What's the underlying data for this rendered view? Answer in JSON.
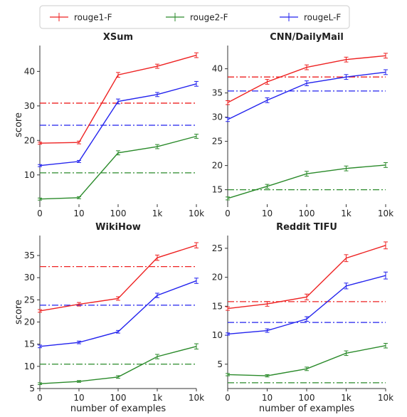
{
  "legend": {
    "placement": "top",
    "entries": [
      {
        "name": "rouge1-F",
        "color": "#ee2222"
      },
      {
        "name": "rouge2-F",
        "color": "#2a8a2a"
      },
      {
        "name": "rougeL-F",
        "color": "#2222ee"
      }
    ]
  },
  "chart_data": [
    {
      "type": "line",
      "title": "XSum",
      "xlabel": "",
      "ylabel": "score",
      "x_categories": [
        "0",
        "10",
        "100",
        "1k",
        "10k"
      ],
      "ylim": [
        1.5,
        47.5
      ],
      "yticks": [
        10,
        20,
        30,
        40
      ],
      "grid": false,
      "series": [
        {
          "name": "rouge1-F",
          "values": [
            19.2,
            19.4,
            39.0,
            41.5,
            44.7
          ],
          "errors": [
            0.3,
            0.4,
            0.7,
            0.6,
            0.7
          ]
        },
        {
          "name": "rouge2-F",
          "values": [
            3.0,
            3.4,
            16.4,
            18.2,
            21.2
          ],
          "errors": [
            0.3,
            0.3,
            0.6,
            0.6,
            0.6
          ]
        },
        {
          "name": "rougeL-F",
          "values": [
            12.7,
            13.9,
            31.3,
            33.3,
            36.4
          ],
          "errors": [
            0.3,
            0.3,
            0.7,
            0.6,
            0.7
          ]
        }
      ],
      "baselines": [
        {
          "name": "rouge1-F",
          "value": 30.8
        },
        {
          "name": "rouge2-F",
          "value": 10.6
        },
        {
          "name": "rougeL-F",
          "value": 24.4
        }
      ]
    },
    {
      "type": "line",
      "title": "CNN/DailyMail",
      "xlabel": "",
      "ylabel": "",
      "x_categories": [
        "0",
        "10",
        "100",
        "1k",
        "10k"
      ],
      "ylim": [
        12.0,
        44.8
      ],
      "yticks": [
        15,
        20,
        25,
        30,
        35,
        40
      ],
      "grid": false,
      "series": [
        {
          "name": "rouge1-F",
          "values": [
            33.0,
            37.3,
            40.3,
            41.9,
            42.7
          ],
          "errors": [
            0.4,
            0.5,
            0.5,
            0.5,
            0.5
          ]
        },
        {
          "name": "rouge2-F",
          "values": [
            13.2,
            15.7,
            18.3,
            19.4,
            20.1
          ],
          "errors": [
            0.3,
            0.4,
            0.5,
            0.5,
            0.5
          ]
        },
        {
          "name": "rougeL-F",
          "values": [
            29.5,
            33.5,
            37.0,
            38.3,
            39.3
          ],
          "errors": [
            0.4,
            0.5,
            0.5,
            0.5,
            0.5
          ]
        }
      ],
      "baselines": [
        {
          "name": "rouge1-F",
          "value": 38.3
        },
        {
          "name": "rouge2-F",
          "value": 15.0
        },
        {
          "name": "rougeL-F",
          "value": 35.4
        }
      ]
    },
    {
      "type": "line",
      "title": "WikiHow",
      "xlabel": "number of examples",
      "ylabel": "score",
      "x_categories": [
        "0",
        "10",
        "100",
        "1k",
        "10k"
      ],
      "ylim": [
        5.0,
        39.5
      ],
      "yticks": [
        5,
        10,
        15,
        20,
        25,
        30,
        35
      ],
      "grid": false,
      "series": [
        {
          "name": "rouge1-F",
          "values": [
            22.5,
            24.0,
            25.3,
            34.5,
            37.3
          ],
          "errors": [
            0.3,
            0.4,
            0.4,
            0.6,
            0.6
          ]
        },
        {
          "name": "rouge2-F",
          "values": [
            6.1,
            6.6,
            7.6,
            12.2,
            14.5
          ],
          "errors": [
            0.2,
            0.2,
            0.3,
            0.5,
            0.6
          ]
        },
        {
          "name": "rougeL-F",
          "values": [
            14.5,
            15.4,
            17.8,
            26.0,
            29.3
          ],
          "errors": [
            0.3,
            0.3,
            0.3,
            0.5,
            0.6
          ]
        }
      ],
      "baselines": [
        {
          "name": "rouge1-F",
          "value": 32.5
        },
        {
          "name": "rouge2-F",
          "value": 10.5
        },
        {
          "name": "rougeL-F",
          "value": 23.8
        }
      ]
    },
    {
      "type": "line",
      "title": "Reddit TIFU",
      "xlabel": "number of examples",
      "ylabel": "",
      "x_categories": [
        "0",
        "10",
        "100",
        "1k",
        "10k"
      ],
      "ylim": [
        0.8,
        27.2
      ],
      "yticks": [
        5,
        10,
        15,
        20,
        25
      ],
      "grid": false,
      "series": [
        {
          "name": "rouge1-F",
          "values": [
            14.6,
            15.4,
            16.6,
            23.3,
            25.5
          ],
          "errors": [
            0.3,
            0.4,
            0.5,
            0.6,
            0.6
          ]
        },
        {
          "name": "rouge2-F",
          "values": [
            3.2,
            3.0,
            4.2,
            6.9,
            8.2
          ],
          "errors": [
            0.2,
            0.2,
            0.3,
            0.4,
            0.4
          ]
        },
        {
          "name": "rougeL-F",
          "values": [
            10.2,
            10.8,
            12.8,
            18.5,
            20.3
          ],
          "errors": [
            0.2,
            0.3,
            0.4,
            0.5,
            0.6
          ]
        }
      ],
      "baselines": [
        {
          "name": "rouge1-F",
          "value": 15.8
        },
        {
          "name": "rouge2-F",
          "value": 1.8
        },
        {
          "name": "rougeL-F",
          "value": 12.2
        }
      ]
    }
  ]
}
